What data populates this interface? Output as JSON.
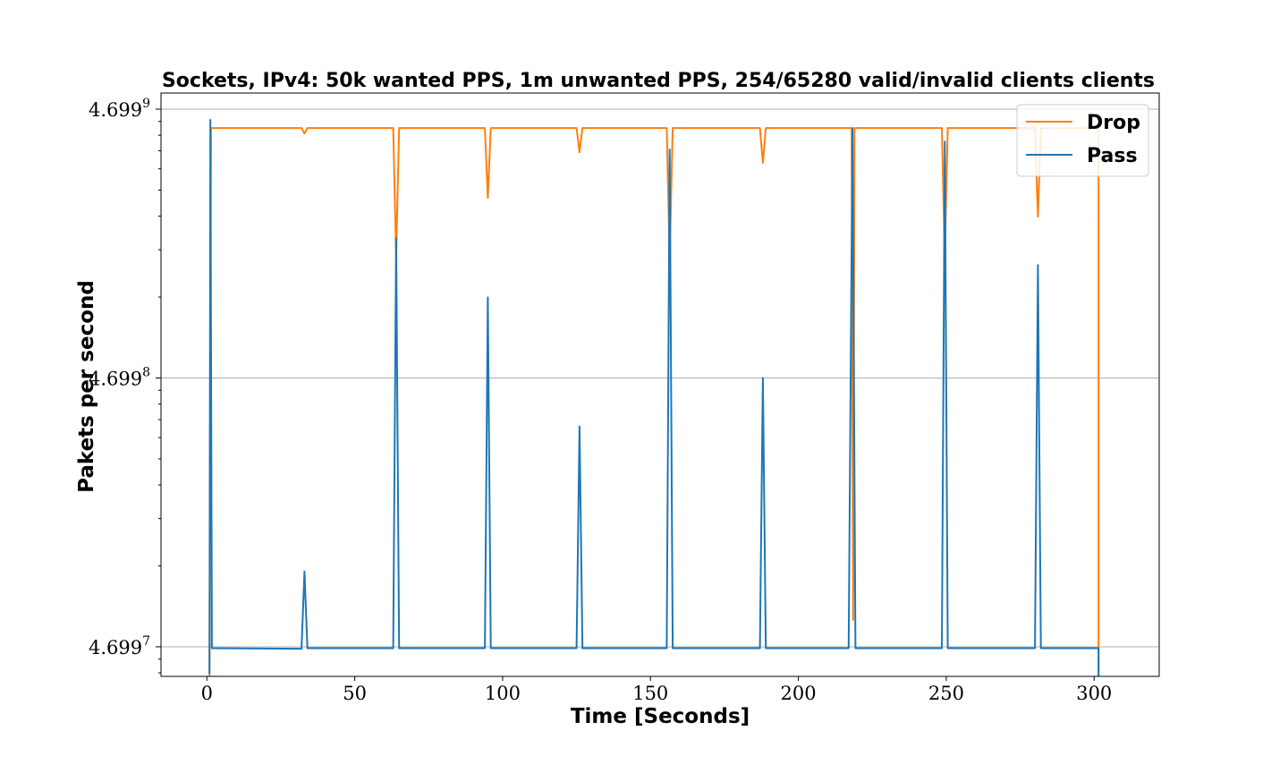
{
  "chart_data": {
    "type": "line",
    "title": "Sockets, IPv4: 50k wanted PPS, 1m unwanted PPS, 254/65280 valid/invalid clients clients",
    "xlabel": "Time [Seconds]",
    "ylabel": "Pakets per second",
    "xlim": [
      -15.5,
      322
    ],
    "ylim_log10": [
      6.89,
      9.06
    ],
    "x_ticks": [
      0,
      50,
      100,
      150,
      200,
      250,
      300
    ],
    "x_tick_labels": [
      "0",
      "50",
      "100",
      "150",
      "200",
      "250",
      "300"
    ],
    "y_ticks": [
      {
        "log10": 7,
        "base": "4.699",
        "exp": "7"
      },
      {
        "log10": 8,
        "base": "4.699",
        "exp": "8"
      },
      {
        "log10": 9,
        "base": "4.699",
        "exp": "9"
      }
    ],
    "y_scale": "log",
    "grid": "y-major",
    "legend_position": "top-right",
    "series": [
      {
        "name": "Drop",
        "color": "#ff7f0e",
        "points": [
          [
            0.9,
            6.3
          ],
          [
            1.4,
            8.93
          ],
          [
            32,
            8.93
          ],
          [
            33,
            8.91
          ],
          [
            34,
            8.93
          ],
          [
            63,
            8.93
          ],
          [
            64,
            8.45
          ],
          [
            65,
            8.93
          ],
          [
            94,
            8.93
          ],
          [
            95,
            8.67
          ],
          [
            96,
            8.93
          ],
          [
            125,
            8.93
          ],
          [
            126,
            8.84
          ],
          [
            127,
            8.93
          ],
          [
            155.5,
            8.93
          ],
          [
            156.5,
            8.45
          ],
          [
            157.5,
            8.93
          ],
          [
            187,
            8.93
          ],
          [
            188,
            8.8
          ],
          [
            189,
            8.93
          ],
          [
            217,
            8.93
          ],
          [
            218,
            8.93
          ],
          [
            218.5,
            7.1
          ],
          [
            219,
            8.93
          ],
          [
            248.5,
            8.93
          ],
          [
            249.5,
            8.45
          ],
          [
            250.5,
            8.93
          ],
          [
            280,
            8.93
          ],
          [
            281,
            8.6
          ],
          [
            282,
            8.93
          ],
          [
            301.5,
            8.93
          ],
          [
            301.5,
            6.89
          ]
        ]
      },
      {
        "name": "Pass",
        "color": "#1f77b4",
        "points": [
          [
            0.9,
            6.9
          ],
          [
            1.2,
            8.96
          ],
          [
            1.7,
            6.995
          ],
          [
            32,
            6.993
          ],
          [
            33,
            7.28
          ],
          [
            34,
            6.995
          ],
          [
            63,
            6.995
          ],
          [
            64,
            8.52
          ],
          [
            65,
            6.995
          ],
          [
            94,
            6.995
          ],
          [
            95,
            8.3
          ],
          [
            96,
            6.995
          ],
          [
            125,
            6.995
          ],
          [
            126,
            7.82
          ],
          [
            127,
            6.995
          ],
          [
            155.5,
            6.995
          ],
          [
            156.5,
            8.85
          ],
          [
            157.5,
            6.995
          ],
          [
            187,
            6.995
          ],
          [
            188,
            8.0
          ],
          [
            189,
            6.995
          ],
          [
            217,
            6.995
          ],
          [
            218.3,
            8.93
          ],
          [
            219.3,
            6.995
          ],
          [
            248.5,
            6.995
          ],
          [
            249.5,
            8.88
          ],
          [
            250.5,
            6.995
          ],
          [
            280,
            6.995
          ],
          [
            281,
            8.42
          ],
          [
            282,
            6.995
          ],
          [
            301.5,
            6.995
          ],
          [
            301.5,
            6.89
          ]
        ]
      }
    ]
  }
}
